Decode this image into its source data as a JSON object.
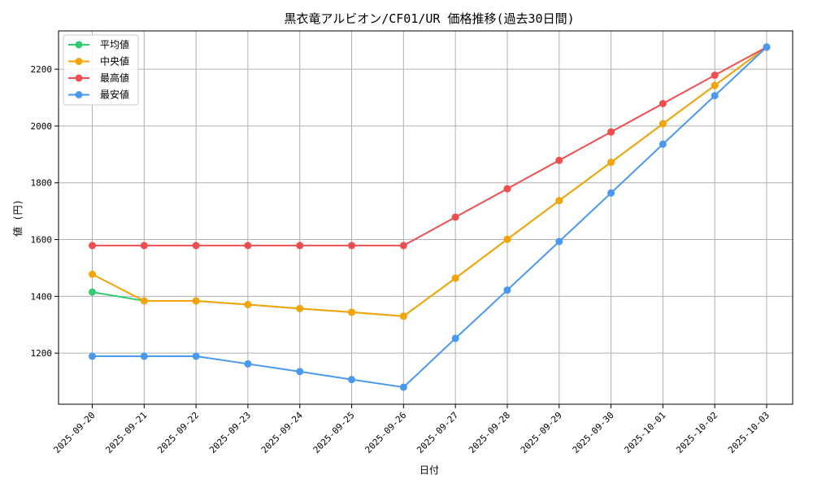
{
  "chart_data": {
    "type": "line",
    "title": "黒衣竜アルビオン/CF01/UR 価格推移(過去30日間)",
    "xlabel": "日付",
    "ylabel": "値 (円)",
    "categories": [
      "2025-09-20",
      "2025-09-21",
      "2025-09-22",
      "2025-09-23",
      "2025-09-24",
      "2025-09-25",
      "2025-09-26",
      "2025-09-27",
      "2025-09-28",
      "2025-09-29",
      "2025-09-30",
      "2025-10-01",
      "2025-10-02",
      "2025-10-03"
    ],
    "ylim": [
      1020,
      2335
    ],
    "yticks": [
      1200,
      1400,
      1600,
      1800,
      2000,
      2200
    ],
    "grid": true,
    "legend_position": "top-left",
    "series": [
      {
        "name": "平均値",
        "color": "#2ecc71",
        "values": [
          1415,
          1384,
          1384,
          1371,
          1357,
          1344,
          1330,
          1464,
          1601,
          1737,
          1872,
          2008,
          2143,
          2278
        ]
      },
      {
        "name": "中央値",
        "color": "#f5a50a",
        "values": [
          1478,
          1384,
          1384,
          1371,
          1357,
          1344,
          1330,
          1464,
          1601,
          1737,
          1872,
          2008,
          2143,
          2278
        ]
      },
      {
        "name": "最高値",
        "color": "#ef4f4f",
        "values": [
          1579,
          1579,
          1579,
          1579,
          1579,
          1579,
          1579,
          1679,
          1779,
          1879,
          1979,
          2079,
          2179,
          2278
        ]
      },
      {
        "name": "最安値",
        "color": "#4a99f0",
        "values": [
          1189,
          1189,
          1189,
          1162,
          1135,
          1107,
          1080,
          1252,
          1422,
          1593,
          1764,
          1936,
          2107,
          2278
        ]
      }
    ]
  }
}
